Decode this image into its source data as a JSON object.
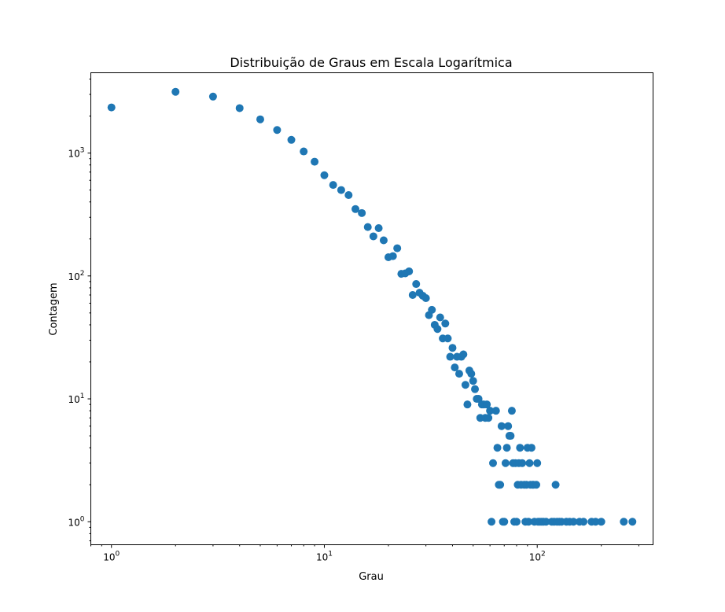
{
  "chart_data": {
    "type": "scatter",
    "title": "Distribuição de Graus em Escala Logarítmica",
    "xlabel": "Grau",
    "ylabel": "Contagem",
    "xscale": "log",
    "yscale": "log",
    "xlim": [
      0.8,
      350
    ],
    "ylim": [
      0.65,
      4500
    ],
    "grid": false,
    "marker_color": "#1f77b4",
    "x_ticks": [
      {
        "value": 1,
        "base": "10",
        "exp": "0"
      },
      {
        "value": 10,
        "base": "10",
        "exp": "1"
      },
      {
        "value": 100,
        "base": "10",
        "exp": "2"
      }
    ],
    "y_ticks": [
      {
        "value": 1,
        "base": "10",
        "exp": "0"
      },
      {
        "value": 10,
        "base": "10",
        "exp": "1"
      },
      {
        "value": 100,
        "base": "10",
        "exp": "2"
      },
      {
        "value": 1000,
        "base": "10",
        "exp": "3"
      }
    ],
    "points": [
      [
        1,
        2350
      ],
      [
        2,
        3150
      ],
      [
        3,
        2880
      ],
      [
        4,
        2320
      ],
      [
        5,
        1880
      ],
      [
        6,
        1540
      ],
      [
        7,
        1280
      ],
      [
        8,
        1030
      ],
      [
        9,
        850
      ],
      [
        10,
        660
      ],
      [
        11,
        550
      ],
      [
        12,
        500
      ],
      [
        13,
        455
      ],
      [
        14,
        350
      ],
      [
        15,
        325
      ],
      [
        16,
        250
      ],
      [
        17,
        210
      ],
      [
        18,
        245
      ],
      [
        19,
        195
      ],
      [
        20,
        142
      ],
      [
        21,
        145
      ],
      [
        22,
        168
      ],
      [
        23,
        104
      ],
      [
        24,
        105
      ],
      [
        25,
        109
      ],
      [
        26,
        70
      ],
      [
        27,
        86
      ],
      [
        28,
        73
      ],
      [
        29,
        69
      ],
      [
        30,
        66
      ],
      [
        31,
        48
      ],
      [
        32,
        53
      ],
      [
        33,
        40
      ],
      [
        34,
        37
      ],
      [
        35,
        46
      ],
      [
        36,
        31
      ],
      [
        37,
        41
      ],
      [
        38,
        31
      ],
      [
        39,
        22
      ],
      [
        40,
        26
      ],
      [
        41,
        18
      ],
      [
        42,
        22
      ],
      [
        43,
        16
      ],
      [
        44,
        22
      ],
      [
        45,
        23
      ],
      [
        46,
        13
      ],
      [
        47,
        9
      ],
      [
        48,
        17
      ],
      [
        49,
        16
      ],
      [
        50,
        14
      ],
      [
        51,
        12
      ],
      [
        52,
        10
      ],
      [
        53,
        10
      ],
      [
        54,
        7
      ],
      [
        55,
        9
      ],
      [
        56,
        9
      ],
      [
        57,
        7
      ],
      [
        58,
        9
      ],
      [
        59,
        7
      ],
      [
        60,
        8
      ],
      [
        61,
        1
      ],
      [
        62,
        3
      ],
      [
        64,
        8
      ],
      [
        65,
        4
      ],
      [
        66,
        2
      ],
      [
        67,
        2
      ],
      [
        68,
        6
      ],
      [
        69,
        1
      ],
      [
        70,
        1
      ],
      [
        71,
        3
      ],
      [
        72,
        4
      ],
      [
        73,
        6
      ],
      [
        74,
        5
      ],
      [
        75,
        5
      ],
      [
        76,
        8
      ],
      [
        77,
        3
      ],
      [
        78,
        1
      ],
      [
        79,
        3
      ],
      [
        80,
        1
      ],
      [
        81,
        2
      ],
      [
        82,
        3
      ],
      [
        83,
        4
      ],
      [
        84,
        2
      ],
      [
        85,
        3
      ],
      [
        87,
        2
      ],
      [
        88,
        1
      ],
      [
        89,
        2
      ],
      [
        90,
        4
      ],
      [
        91,
        1
      ],
      [
        92,
        3
      ],
      [
        93,
        2
      ],
      [
        94,
        4
      ],
      [
        95,
        2
      ],
      [
        96,
        2
      ],
      [
        97,
        1
      ],
      [
        99,
        2
      ],
      [
        100,
        3
      ],
      [
        101,
        1
      ],
      [
        103,
        1
      ],
      [
        105,
        1
      ],
      [
        107,
        1
      ],
      [
        110,
        1
      ],
      [
        117,
        1
      ],
      [
        120,
        1
      ],
      [
        122,
        2
      ],
      [
        124,
        1
      ],
      [
        127,
        1
      ],
      [
        130,
        1
      ],
      [
        137,
        1
      ],
      [
        142,
        1
      ],
      [
        148,
        1
      ],
      [
        158,
        1
      ],
      [
        165,
        1
      ],
      [
        180,
        1
      ],
      [
        188,
        1
      ],
      [
        200,
        1
      ],
      [
        255,
        1
      ],
      [
        280,
        1
      ]
    ]
  }
}
